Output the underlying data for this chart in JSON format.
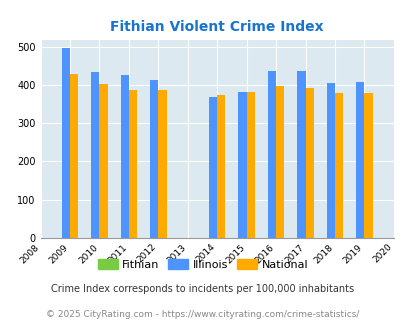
{
  "title": "Fithian Violent Crime Index",
  "title_color": "#1874CD",
  "background_color": "#dce9f0",
  "fig_background": "#ffffff",
  "all_years": [
    2008,
    2009,
    2010,
    2011,
    2012,
    2013,
    2014,
    2015,
    2016,
    2017,
    2018,
    2019,
    2020
  ],
  "data_years": [
    2009,
    2010,
    2011,
    2012,
    2014,
    2015,
    2016,
    2017,
    2018,
    2019
  ],
  "illinois_values": {
    "2009": 498,
    "2010": 435,
    "2011": 428,
    "2012": 414,
    "2014": 368,
    "2015": 383,
    "2016": 438,
    "2017": 438,
    "2018": 405,
    "2019": 408
  },
  "national_values": {
    "2009": 430,
    "2010": 404,
    "2011": 387,
    "2012": 387,
    "2014": 374,
    "2015": 383,
    "2016": 397,
    "2017": 394,
    "2018": 379,
    "2019": 379
  },
  "illinois_color": "#4d94ff",
  "national_color": "#ffaa00",
  "fithian_color": "#77cc44",
  "bar_width": 0.28,
  "ylim": [
    0,
    520
  ],
  "yticks": [
    0,
    100,
    200,
    300,
    400,
    500
  ],
  "footnote1": "Crime Index corresponds to incidents per 100,000 inhabitants",
  "footnote2": "© 2025 CityRating.com - https://www.cityrating.com/crime-statistics/",
  "legend_labels": [
    "Fithian",
    "Illinois",
    "National"
  ]
}
